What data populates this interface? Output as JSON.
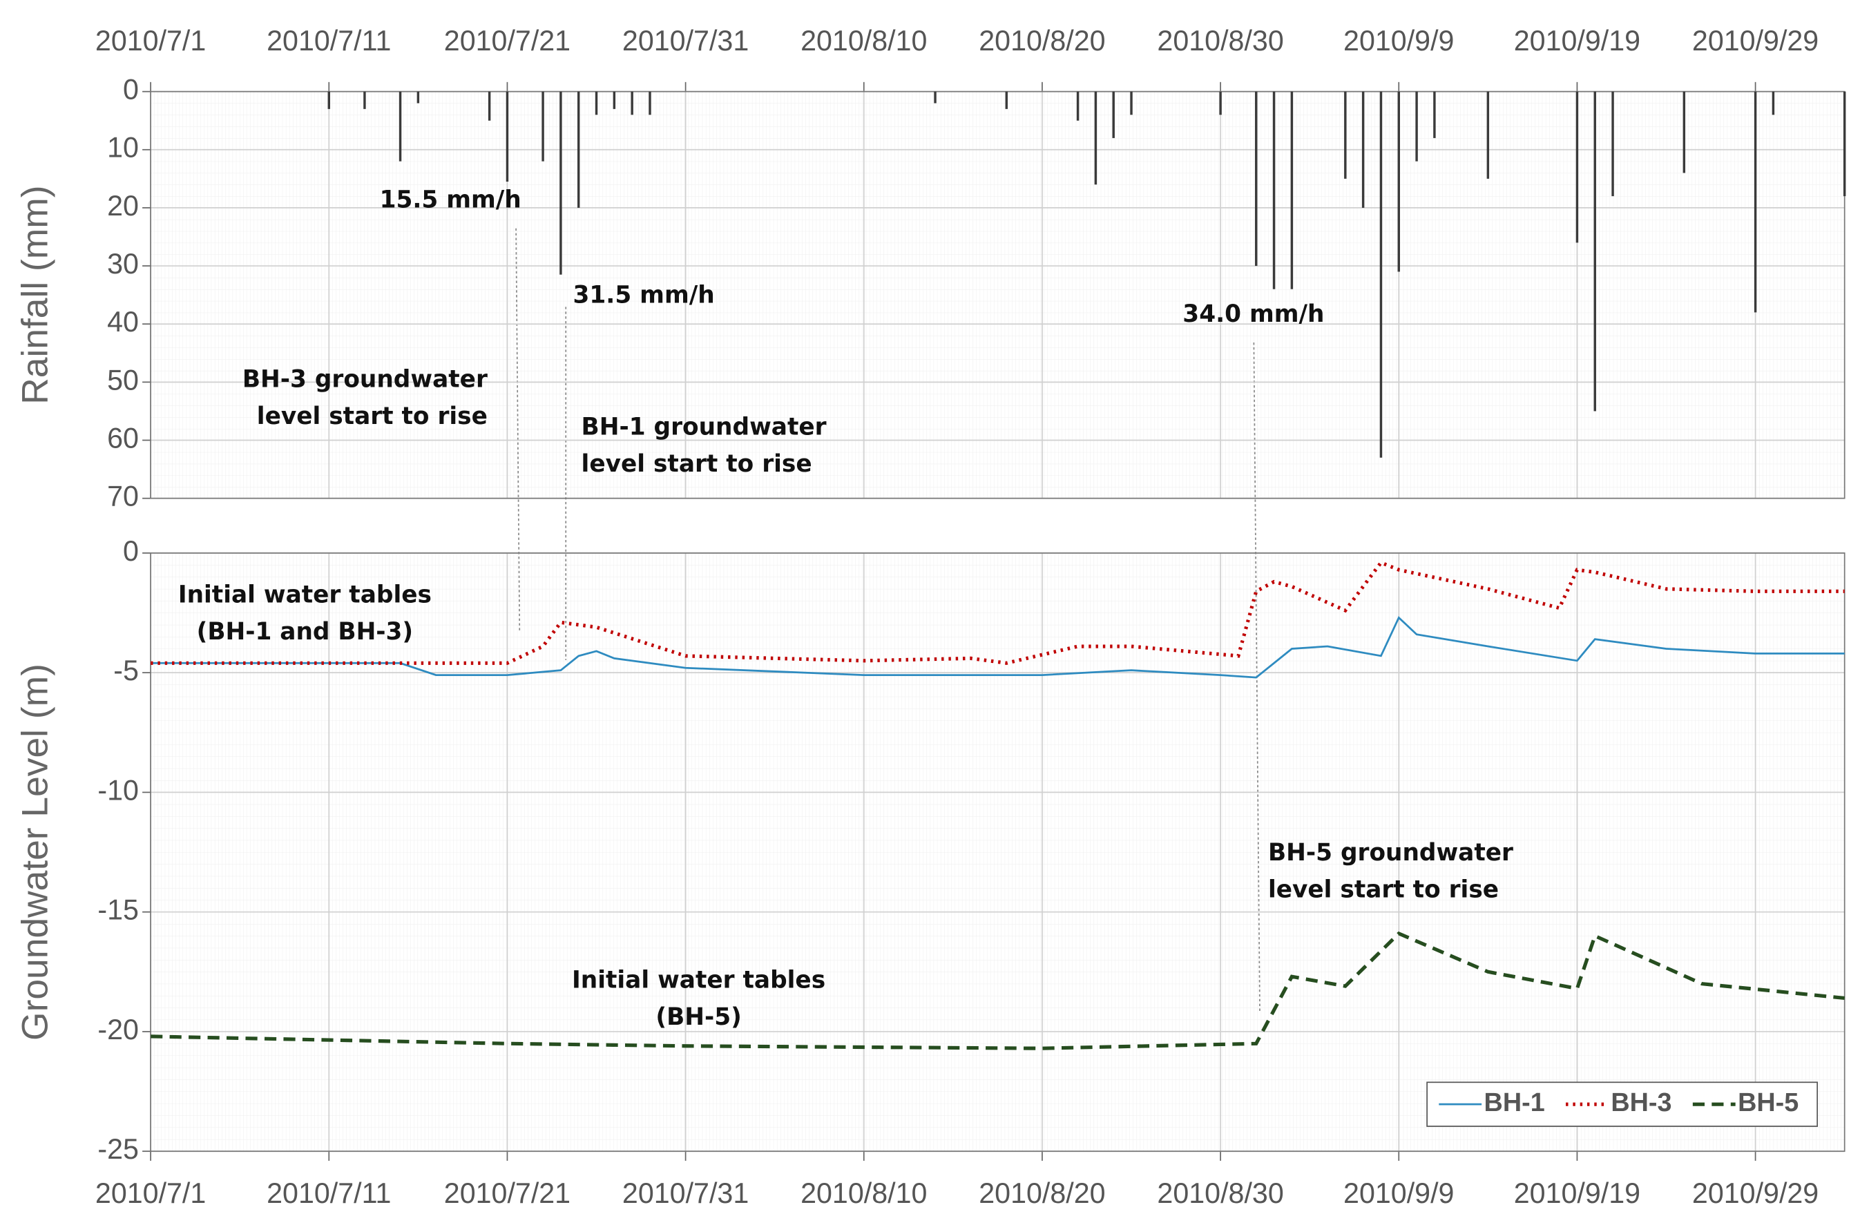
{
  "chart_data": [
    {
      "type": "bar",
      "ylabel": "Rainfall (mm)",
      "color": "#3a3a3a",
      "y_inverted": true,
      "grid": true,
      "xlim": [
        "2010/7/1",
        "2010/10/4"
      ],
      "xticks": [
        "2010/7/1",
        "2010/7/11",
        "2010/7/21",
        "2010/7/31",
        "2010/8/10",
        "2010/8/20",
        "2010/8/30",
        "2010/9/9",
        "2010/9/19",
        "2010/9/29"
      ],
      "ylim": [
        0,
        70
      ],
      "yticks": [
        0,
        10,
        20,
        30,
        40,
        50,
        60,
        70
      ],
      "x": [
        "2010/7/11",
        "2010/7/13",
        "2010/7/15",
        "2010/7/16",
        "2010/7/20",
        "2010/7/21",
        "2010/7/23",
        "2010/7/24",
        "2010/7/25",
        "2010/7/26",
        "2010/7/27",
        "2010/7/28",
        "2010/7/29",
        "2010/8/14",
        "2010/8/18",
        "2010/8/22",
        "2010/8/23",
        "2010/8/24",
        "2010/8/25",
        "2010/8/30",
        "2010/9/1",
        "2010/9/2",
        "2010/9/3",
        "2010/9/6",
        "2010/9/7",
        "2010/9/8",
        "2010/9/9",
        "2010/9/10",
        "2010/9/11",
        "2010/9/14",
        "2010/9/19",
        "2010/9/20",
        "2010/9/21",
        "2010/9/25",
        "2010/9/29",
        "2010/9/30",
        "2010/10/4"
      ],
      "values": [
        3,
        3,
        12,
        2,
        5,
        15.5,
        12,
        31.5,
        20,
        4,
        3,
        4,
        4,
        2,
        3,
        5,
        16,
        8,
        4,
        4,
        30,
        34,
        34,
        15,
        20,
        63,
        31,
        12,
        8,
        15,
        26,
        55,
        18,
        14,
        38,
        4,
        18
      ],
      "annotations": [
        [
          "15.5 mm/h"
        ],
        [
          "31.5 mm/h"
        ],
        [
          "34.0 mm/h"
        ],
        [
          "BH-3 groundwater",
          "level start to rise"
        ],
        [
          "BH-1 groundwater",
          "level start to rise"
        ]
      ]
    },
    {
      "type": "line",
      "ylabel": "Groundwater Level (m)",
      "grid": true,
      "legend": "lower right",
      "xlim": [
        "2010/7/1",
        "2010/10/4"
      ],
      "xticks": [
        "2010/7/1",
        "2010/7/11",
        "2010/7/21",
        "2010/7/31",
        "2010/8/10",
        "2010/8/20",
        "2010/8/30",
        "2010/9/9",
        "2010/9/19",
        "2010/9/29"
      ],
      "ylim": [
        -25,
        0
      ],
      "yticks": [
        0,
        -5,
        -10,
        -15,
        -20,
        -25
      ],
      "series": [
        {
          "name": "BH-1",
          "color": "#2e8bc0",
          "style": "solid",
          "x": [
            "2010/7/1",
            "2010/7/15",
            "2010/7/17",
            "2010/7/21",
            "2010/7/24",
            "2010/7/25",
            "2010/7/26",
            "2010/7/27",
            "2010/7/31",
            "2010/8/10",
            "2010/8/20",
            "2010/8/25",
            "2010/8/30",
            "2010/9/1",
            "2010/9/3",
            "2010/9/5",
            "2010/9/8",
            "2010/9/9",
            "2010/9/10",
            "2010/9/14",
            "2010/9/19",
            "2010/9/20",
            "2010/9/24",
            "2010/9/29",
            "2010/10/4"
          ],
          "values": [
            -4.6,
            -4.6,
            -5.1,
            -5.1,
            -4.9,
            -4.3,
            -4.1,
            -4.4,
            -4.8,
            -5.1,
            -5.1,
            -4.9,
            -5.1,
            -5.2,
            -4.0,
            -3.9,
            -4.3,
            -2.7,
            -3.4,
            -3.9,
            -4.5,
            -3.6,
            -4.0,
            -4.2,
            -4.2
          ]
        },
        {
          "name": "BH-3",
          "color": "#c00000",
          "style": "dotted",
          "x": [
            "2010/7/1",
            "2010/7/15",
            "2010/7/21",
            "2010/7/23",
            "2010/7/24",
            "2010/7/26",
            "2010/7/31",
            "2010/8/10",
            "2010/8/16",
            "2010/8/18",
            "2010/8/22",
            "2010/8/25",
            "2010/8/31",
            "2010/9/1",
            "2010/9/2",
            "2010/9/3",
            "2010/9/6",
            "2010/9/8",
            "2010/9/9",
            "2010/9/14",
            "2010/9/18",
            "2010/9/19",
            "2010/9/20",
            "2010/9/24",
            "2010/9/29",
            "2010/10/4"
          ],
          "values": [
            -4.6,
            -4.6,
            -4.6,
            -3.9,
            -2.9,
            -3.1,
            -4.3,
            -4.5,
            -4.4,
            -4.6,
            -3.9,
            -3.9,
            -4.3,
            -1.6,
            -1.2,
            -1.4,
            -2.4,
            -0.4,
            -0.7,
            -1.5,
            -2.3,
            -0.7,
            -0.8,
            -1.5,
            -1.6,
            -1.6
          ]
        },
        {
          "name": "BH-5",
          "color": "#264d1f",
          "style": "dashed",
          "x": [
            "2010/7/1",
            "2010/7/21",
            "2010/7/31",
            "2010/8/20",
            "2010/9/1",
            "2010/9/3",
            "2010/9/6",
            "2010/9/9",
            "2010/9/14",
            "2010/9/19",
            "2010/9/20",
            "2010/9/26",
            "2010/10/4"
          ],
          "values": [
            -20.2,
            -20.5,
            -20.6,
            -20.7,
            -20.5,
            -17.7,
            -18.1,
            -15.9,
            -17.5,
            -18.2,
            -16.0,
            -18.0,
            -18.6
          ]
        }
      ],
      "annotations": [
        [
          "Initial water tables",
          "(BH-1 and BH-3)"
        ],
        [
          "BH-5 groundwater",
          "level start to rise"
        ],
        [
          "Initial water tables",
          "(BH-5)"
        ]
      ]
    }
  ]
}
